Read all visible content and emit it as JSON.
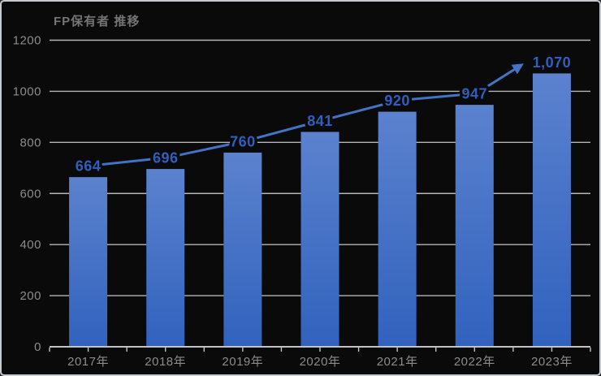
{
  "chart_data": {
    "type": "bar",
    "title": "FP保有者 推移",
    "categories": [
      "2017年",
      "2018年",
      "2019年",
      "2020年",
      "2021年",
      "2022年",
      "2023年"
    ],
    "values": [
      664,
      696,
      760,
      841,
      920,
      947,
      1070
    ],
    "data_labels": [
      "664",
      "696",
      "760",
      "841",
      "920",
      "947",
      "1,070"
    ],
    "xlabel": "",
    "ylabel": "",
    "ylim": [
      0,
      1200
    ],
    "y_ticks": [
      0,
      200,
      400,
      600,
      800,
      1000,
      1200
    ],
    "grid": true,
    "legend": false,
    "annotations": [
      "solid blue trend line with arrowhead connecting the data labels from 664 up to 1,070"
    ]
  },
  "colors": {
    "background": "#0a0a0a",
    "frame_border": "#c5cad1",
    "title": "#757575",
    "gridline": "#b5b5b5",
    "axis_line": "#c2c2c2",
    "tick_label": "#8c8c8c",
    "bar_gradient_top": "#5b82ce",
    "bar_gradient_bottom": "#3162bd",
    "trend_line": "#4472c4",
    "data_label": "#2f5fbe"
  }
}
